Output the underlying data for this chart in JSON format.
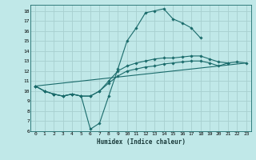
{
  "xlabel": "Humidex (Indice chaleur)",
  "bg_color": "#c0e8e8",
  "grid_color": "#a8d0d0",
  "line_color": "#1a6b6b",
  "xlim": [
    -0.5,
    23.5
  ],
  "ylim": [
    6,
    18.6
  ],
  "xticks": [
    0,
    1,
    2,
    3,
    4,
    5,
    6,
    7,
    8,
    9,
    10,
    11,
    12,
    13,
    14,
    15,
    16,
    17,
    18,
    19,
    20,
    21,
    22,
    23
  ],
  "yticks": [
    6,
    7,
    8,
    9,
    10,
    11,
    12,
    13,
    14,
    15,
    16,
    17,
    18
  ],
  "line1_x": [
    0,
    1,
    2,
    3,
    4,
    5,
    6,
    7,
    8,
    9,
    10,
    11,
    12,
    13,
    14,
    15,
    16,
    17,
    18
  ],
  "line1_y": [
    10.5,
    10.0,
    9.7,
    9.5,
    9.7,
    9.5,
    6.2,
    6.8,
    9.5,
    12.2,
    15.0,
    16.3,
    17.8,
    18.0,
    18.2,
    17.2,
    16.8,
    16.3,
    15.3
  ],
  "line2_x": [
    0,
    1,
    2,
    3,
    4,
    5,
    6,
    7,
    8,
    9,
    10,
    11,
    12,
    13,
    14,
    15,
    16,
    17,
    18,
    19,
    20,
    21
  ],
  "line2_y": [
    10.5,
    10.0,
    9.7,
    9.5,
    9.7,
    9.5,
    9.5,
    10.0,
    11.0,
    12.0,
    12.5,
    12.8,
    13.0,
    13.2,
    13.3,
    13.3,
    13.4,
    13.5,
    13.5,
    13.2,
    12.9,
    12.8
  ],
  "line3_x": [
    0,
    1,
    2,
    3,
    4,
    5,
    6,
    7,
    8,
    9,
    10,
    11,
    12,
    13,
    14,
    15,
    16,
    17,
    18,
    19,
    20,
    21,
    22,
    23
  ],
  "line3_y": [
    10.5,
    10.0,
    9.7,
    9.5,
    9.7,
    9.5,
    9.5,
    10.0,
    10.8,
    11.5,
    12.0,
    12.2,
    12.4,
    12.5,
    12.7,
    12.8,
    12.9,
    13.0,
    13.0,
    12.8,
    12.5,
    12.8,
    12.9,
    12.8
  ],
  "line4_x": [
    0,
    23
  ],
  "line4_y": [
    10.5,
    12.8
  ]
}
